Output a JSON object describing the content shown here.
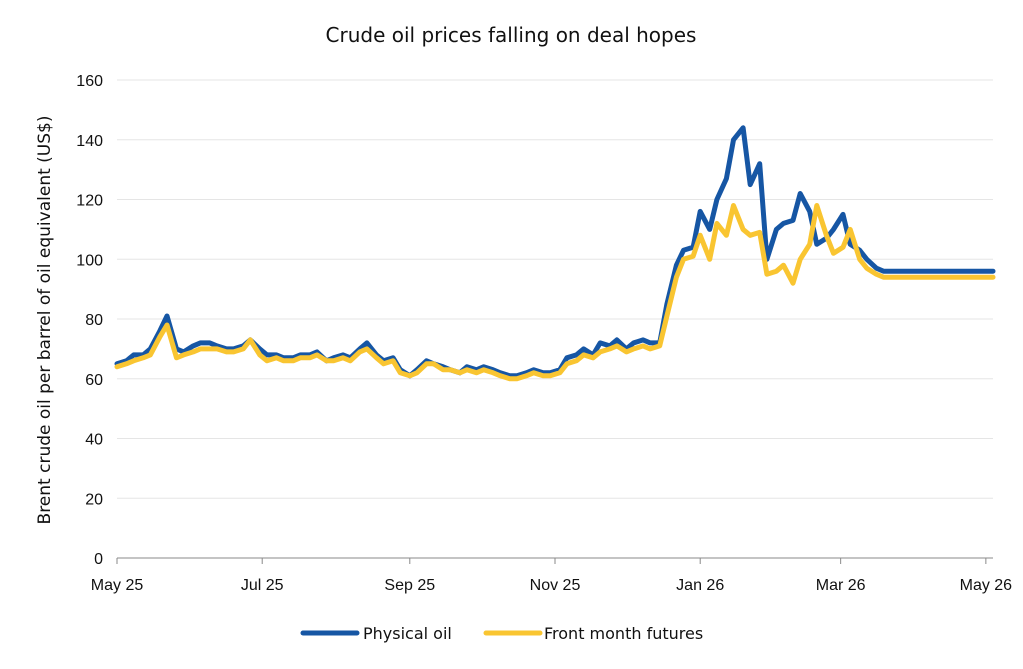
{
  "chart_data": {
    "type": "line",
    "title": "Crude oil prices falling on deal hopes",
    "ylabel": "Brent crude oil per barrel of oil equivalent (US$)",
    "xlabel": "",
    "ylim": [
      0,
      160
    ],
    "yticks": [
      0,
      20,
      40,
      60,
      80,
      100,
      120,
      140,
      160
    ],
    "xlim": [
      "2025-05-01",
      "2026-05-04"
    ],
    "xticks": [
      {
        "date": "2025-05-01",
        "label": "May 25"
      },
      {
        "date": "2025-07-01",
        "label": "Jul 25"
      },
      {
        "date": "2025-09-01",
        "label": "Sep 25"
      },
      {
        "date": "2025-11-01",
        "label": "Nov 25"
      },
      {
        "date": "2026-01-01",
        "label": "Jan 26"
      },
      {
        "date": "2026-03-01",
        "label": "Mar 26"
      },
      {
        "date": "2026-05-01",
        "label": "May 26"
      }
    ],
    "grid": true,
    "legend": "bottom",
    "series": [
      {
        "name": "Physical oil",
        "color": "#1656a4",
        "x": [
          "2025-05-01",
          "2025-05-05",
          "2025-05-08",
          "2025-05-12",
          "2025-05-15",
          "2025-05-19",
          "2025-05-22",
          "2025-05-26",
          "2025-05-29",
          "2025-06-02",
          "2025-06-05",
          "2025-06-09",
          "2025-06-12",
          "2025-06-16",
          "2025-06-19",
          "2025-06-23",
          "2025-06-26",
          "2025-06-30",
          "2025-07-03",
          "2025-07-07",
          "2025-07-10",
          "2025-07-14",
          "2025-07-17",
          "2025-07-21",
          "2025-07-24",
          "2025-07-28",
          "2025-07-31",
          "2025-08-04",
          "2025-08-07",
          "2025-08-11",
          "2025-08-14",
          "2025-08-18",
          "2025-08-21",
          "2025-08-25",
          "2025-08-28",
          "2025-09-01",
          "2025-09-04",
          "2025-09-08",
          "2025-09-11",
          "2025-09-15",
          "2025-09-18",
          "2025-09-22",
          "2025-09-25",
          "2025-09-29",
          "2025-10-02",
          "2025-10-06",
          "2025-10-09",
          "2025-10-13",
          "2025-10-16",
          "2025-10-20",
          "2025-10-23",
          "2025-10-27",
          "2025-10-30",
          "2025-11-03",
          "2025-11-06",
          "2025-11-10",
          "2025-11-13",
          "2025-11-17",
          "2025-11-20",
          "2025-11-24",
          "2025-11-27",
          "2025-12-01",
          "2025-12-04",
          "2025-12-08",
          "2025-12-11",
          "2025-12-15",
          "2025-12-18",
          "2025-12-22",
          "2025-12-25",
          "2025-12-29",
          "2026-01-01",
          "2026-01-05",
          "2026-01-08",
          "2026-01-12",
          "2026-01-15",
          "2026-01-19",
          "2026-01-22",
          "2026-01-26",
          "2026-01-29",
          "2026-02-02",
          "2026-02-05",
          "2026-02-09",
          "2026-02-12",
          "2026-02-16",
          "2026-02-19",
          "2026-02-23",
          "2026-02-26",
          "2026-03-02",
          "2026-03-05",
          "2026-03-09",
          "2026-03-12",
          "2026-03-16",
          "2026-03-19",
          "2026-03-23",
          "2026-03-26",
          "2026-03-30",
          "2026-04-02",
          "2026-04-06",
          "2026-04-09",
          "2026-04-13",
          "2026-04-16",
          "2026-04-20",
          "2026-04-23",
          "2026-04-27",
          "2026-04-30",
          "2026-05-04"
        ],
        "values": [
          65,
          66,
          68,
          68,
          70,
          76,
          81,
          70,
          69,
          71,
          72,
          72,
          71,
          70,
          70,
          71,
          73,
          70,
          68,
          68,
          67,
          67,
          68,
          68,
          69,
          66,
          67,
          68,
          67,
          70,
          72,
          68,
          66,
          67,
          63,
          61,
          63,
          66,
          65,
          64,
          63,
          62,
          64,
          63,
          64,
          63,
          62,
          61,
          61,
          62,
          63,
          62,
          62,
          63,
          67,
          68,
          70,
          68,
          72,
          71,
          73,
          70,
          72,
          73,
          72,
          72,
          85,
          98,
          103,
          104,
          116,
          110,
          120,
          127,
          140,
          144,
          125,
          132,
          100,
          110,
          112,
          113,
          122,
          116,
          105,
          107,
          110,
          115,
          105,
          103,
          100,
          97,
          96,
          96,
          96,
          96,
          96,
          96,
          96,
          96,
          96,
          96,
          96,
          96,
          96,
          96
        ]
      },
      {
        "name": "Front month futures",
        "color": "#f9c531",
        "x": [
          "2025-05-01",
          "2025-05-05",
          "2025-05-08",
          "2025-05-12",
          "2025-05-15",
          "2025-05-19",
          "2025-05-22",
          "2025-05-26",
          "2025-05-29",
          "2025-06-02",
          "2025-06-05",
          "2025-06-09",
          "2025-06-12",
          "2025-06-16",
          "2025-06-19",
          "2025-06-23",
          "2025-06-26",
          "2025-06-30",
          "2025-07-03",
          "2025-07-07",
          "2025-07-10",
          "2025-07-14",
          "2025-07-17",
          "2025-07-21",
          "2025-07-24",
          "2025-07-28",
          "2025-07-31",
          "2025-08-04",
          "2025-08-07",
          "2025-08-11",
          "2025-08-14",
          "2025-08-18",
          "2025-08-21",
          "2025-08-25",
          "2025-08-28",
          "2025-09-01",
          "2025-09-04",
          "2025-09-08",
          "2025-09-11",
          "2025-09-15",
          "2025-09-18",
          "2025-09-22",
          "2025-09-25",
          "2025-09-29",
          "2025-10-02",
          "2025-10-06",
          "2025-10-09",
          "2025-10-13",
          "2025-10-16",
          "2025-10-20",
          "2025-10-23",
          "2025-10-27",
          "2025-10-30",
          "2025-11-03",
          "2025-11-06",
          "2025-11-10",
          "2025-11-13",
          "2025-11-17",
          "2025-11-20",
          "2025-11-24",
          "2025-11-27",
          "2025-12-01",
          "2025-12-04",
          "2025-12-08",
          "2025-12-11",
          "2025-12-15",
          "2025-12-18",
          "2025-12-22",
          "2025-12-25",
          "2025-12-29",
          "2026-01-01",
          "2026-01-05",
          "2026-01-08",
          "2026-01-12",
          "2026-01-15",
          "2026-01-19",
          "2026-01-22",
          "2026-01-26",
          "2026-01-29",
          "2026-02-02",
          "2026-02-05",
          "2026-02-09",
          "2026-02-12",
          "2026-02-16",
          "2026-02-19",
          "2026-02-23",
          "2026-02-26",
          "2026-03-02",
          "2026-03-05",
          "2026-03-09",
          "2026-03-12",
          "2026-03-16",
          "2026-03-19",
          "2026-03-23",
          "2026-03-26",
          "2026-03-30",
          "2026-04-02",
          "2026-04-06",
          "2026-04-09",
          "2026-04-13",
          "2026-04-16",
          "2026-04-20",
          "2026-04-23",
          "2026-04-27",
          "2026-04-30",
          "2026-05-04"
        ],
        "values": [
          64,
          65,
          66,
          67,
          68,
          74,
          78,
          67,
          68,
          69,
          70,
          70,
          70,
          69,
          69,
          70,
          73,
          68,
          66,
          67,
          66,
          66,
          67,
          67,
          68,
          66,
          66,
          67,
          66,
          69,
          70,
          67,
          65,
          66,
          62,
          61,
          62,
          65,
          65,
          63,
          63,
          62,
          63,
          62,
          63,
          62,
          61,
          60,
          60,
          61,
          62,
          61,
          61,
          62,
          65,
          66,
          68,
          67,
          69,
          70,
          71,
          69,
          70,
          71,
          70,
          71,
          81,
          94,
          100,
          101,
          108,
          100,
          112,
          108,
          118,
          110,
          108,
          109,
          95,
          96,
          98,
          92,
          100,
          105,
          118,
          108,
          102,
          104,
          110,
          100,
          97,
          95,
          94,
          94,
          94,
          94,
          94,
          94,
          94,
          94,
          94,
          94,
          94,
          94,
          94,
          94
        ]
      }
    ]
  }
}
